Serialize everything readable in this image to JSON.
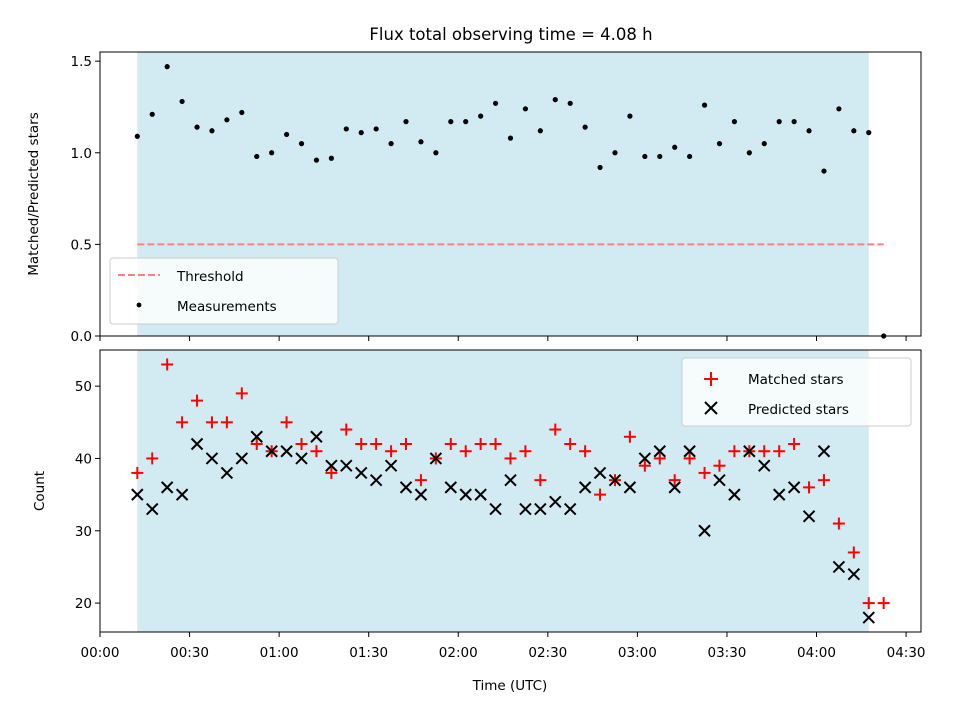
{
  "chart_data": [
    {
      "type": "scatter",
      "title": "Flux total observing time = 4.08 h",
      "xlabel": "",
      "ylabel": "Matched/Predicted stars",
      "xlim": [
        0,
        275
      ],
      "ylim": [
        0,
        1.55
      ],
      "yticks": [
        0.0,
        0.5,
        1.0,
        1.5
      ],
      "ytick_labels": [
        "0.0",
        "0.5",
        "1.0",
        "1.5"
      ],
      "observing_window": [
        12.5,
        257.5
      ],
      "legend": {
        "placement": "lower-left",
        "entries": [
          {
            "label": "Threshold",
            "marker": "dashed-line",
            "color": "#ff7f7f"
          },
          {
            "label": "Measurements",
            "marker": "dot",
            "color": "#000000"
          }
        ]
      },
      "series": [
        {
          "name": "Threshold",
          "kind": "line",
          "style": "dashed",
          "color": "#ff7f7f",
          "x": [
            12.5,
            262.5
          ],
          "y": [
            0.5,
            0.5
          ]
        },
        {
          "name": "Measurements",
          "kind": "scatter",
          "marker": "dot",
          "color": "#000000",
          "x": [
            12.5,
            17.5,
            22.5,
            27.5,
            32.5,
            37.5,
            42.5,
            47.5,
            52.5,
            57.5,
            62.5,
            67.5,
            72.5,
            77.5,
            82.5,
            87.5,
            92.5,
            97.5,
            102.5,
            107.5,
            112.5,
            117.5,
            122.5,
            127.5,
            132.5,
            137.5,
            142.5,
            147.5,
            152.5,
            157.5,
            162.5,
            167.5,
            172.5,
            177.5,
            182.5,
            187.5,
            192.5,
            197.5,
            202.5,
            207.5,
            212.5,
            217.5,
            222.5,
            227.5,
            232.5,
            237.5,
            242.5,
            247.5,
            252.5,
            257.5,
            262.5
          ],
          "y": [
            1.09,
            1.21,
            1.47,
            1.28,
            1.14,
            1.12,
            1.18,
            1.22,
            0.98,
            1.0,
            1.1,
            1.05,
            0.96,
            0.97,
            1.13,
            1.11,
            1.13,
            1.05,
            1.17,
            1.06,
            1.0,
            1.17,
            1.17,
            1.2,
            1.27,
            1.08,
            1.24,
            1.12,
            1.29,
            1.27,
            1.14,
            0.92,
            1.0,
            1.2,
            0.98,
            0.98,
            1.03,
            0.98,
            1.26,
            1.05,
            1.17,
            1.0,
            1.05,
            1.17,
            1.17,
            1.12,
            0.9,
            1.24,
            1.12,
            1.11,
            0.0
          ]
        }
      ]
    },
    {
      "type": "scatter",
      "title": "",
      "xlabel": "Time (UTC)",
      "ylabel": "Count",
      "xlim": [
        0,
        275
      ],
      "ylim": [
        16,
        55
      ],
      "xticks": [
        0,
        30,
        60,
        90,
        120,
        150,
        180,
        210,
        240,
        270
      ],
      "xtick_labels": [
        "00:00",
        "00:30",
        "01:00",
        "01:30",
        "02:00",
        "02:30",
        "03:00",
        "03:30",
        "04:00",
        "04:30"
      ],
      "yticks": [
        20,
        30,
        40,
        50
      ],
      "ytick_labels": [
        "20",
        "30",
        "40",
        "50"
      ],
      "observing_window": [
        12.5,
        257.5
      ],
      "legend": {
        "placement": "top-right",
        "entries": [
          {
            "label": "Matched stars",
            "marker": "plus",
            "color": "#ff0000"
          },
          {
            "label": "Predicted stars",
            "marker": "x",
            "color": "#000000"
          }
        ]
      },
      "series": [
        {
          "name": "Matched stars",
          "marker": "plus",
          "color": "#ff0000",
          "x": [
            12.5,
            17.5,
            22.5,
            27.5,
            32.5,
            37.5,
            42.5,
            47.5,
            52.5,
            57.5,
            62.5,
            67.5,
            72.5,
            77.5,
            82.5,
            87.5,
            92.5,
            97.5,
            102.5,
            107.5,
            112.5,
            117.5,
            122.5,
            127.5,
            132.5,
            137.5,
            142.5,
            147.5,
            152.5,
            157.5,
            162.5,
            167.5,
            172.5,
            177.5,
            182.5,
            187.5,
            192.5,
            197.5,
            202.5,
            207.5,
            212.5,
            217.5,
            222.5,
            227.5,
            232.5,
            237.5,
            242.5,
            247.5,
            252.5,
            257.5,
            262.5
          ],
          "y": [
            38,
            40,
            53,
            45,
            48,
            45,
            45,
            49,
            42,
            41,
            45,
            42,
            41,
            38,
            44,
            42,
            42,
            41,
            42,
            37,
            40,
            42,
            41,
            42,
            42,
            40,
            41,
            37,
            44,
            42,
            41,
            35,
            37,
            43,
            39,
            40,
            37,
            40,
            38,
            39,
            41,
            41,
            41,
            41,
            42,
            36,
            37,
            31,
            27,
            20,
            20
          ]
        },
        {
          "name": "Predicted stars",
          "marker": "x",
          "color": "#000000",
          "x": [
            12.5,
            17.5,
            22.5,
            27.5,
            32.5,
            37.5,
            42.5,
            47.5,
            52.5,
            57.5,
            62.5,
            67.5,
            72.5,
            77.5,
            82.5,
            87.5,
            92.5,
            97.5,
            102.5,
            107.5,
            112.5,
            117.5,
            122.5,
            127.5,
            132.5,
            137.5,
            142.5,
            147.5,
            152.5,
            157.5,
            162.5,
            167.5,
            172.5,
            177.5,
            182.5,
            187.5,
            192.5,
            197.5,
            202.5,
            207.5,
            212.5,
            217.5,
            222.5,
            227.5,
            232.5,
            237.5,
            242.5,
            247.5,
            252.5,
            257.5
          ],
          "y": [
            35,
            33,
            36,
            35,
            42,
            40,
            38,
            40,
            43,
            41,
            41,
            40,
            43,
            39,
            39,
            38,
            37,
            39,
            36,
            35,
            40,
            36,
            35,
            35,
            33,
            37,
            33,
            33,
            34,
            33,
            36,
            38,
            37,
            36,
            40,
            41,
            36,
            41,
            30,
            37,
            35,
            41,
            39,
            35,
            36,
            32,
            41,
            25,
            24,
            18
          ]
        }
      ]
    }
  ],
  "colors": {
    "observing_band": "#add8e6",
    "threshold": "#ff7f7f",
    "matched": "#ff0000",
    "predicted": "#000000",
    "measurements": "#000000"
  }
}
